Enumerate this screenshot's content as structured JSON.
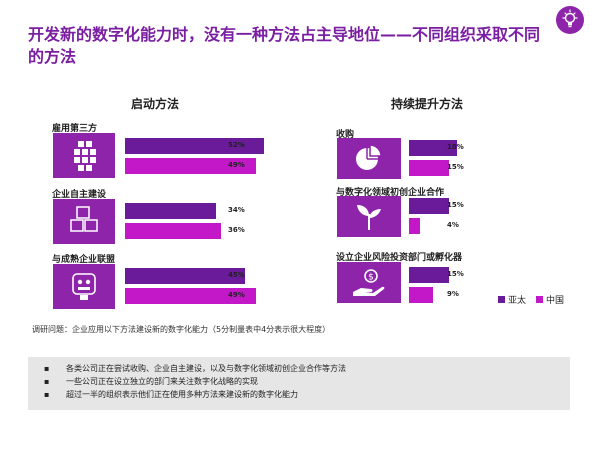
{
  "page": {
    "title": "开发新的数字化能力时，没有一种方法占主导地位——不同组织采取不同的方法",
    "icon": "lightbulb-icon"
  },
  "colors": {
    "asia_pacific": "#6a1b9a",
    "china": "#c218c8",
    "icon_bg": "#8e24aa",
    "title": "#7b1fa2",
    "summary_bg": "#e6e6e6"
  },
  "chart_data": [
    {
      "type": "bar",
      "title": "启动方法",
      "categories": [
        "雇用第三方",
        "企业自主建设",
        "与成熟企业联盟"
      ],
      "icons": [
        "grid-blocks-icon",
        "cubes-icon",
        "robot-icon"
      ],
      "series": [
        {
          "name": "亚太",
          "values": [
            52,
            34,
            45
          ]
        },
        {
          "name": "中国",
          "values": [
            49,
            36,
            49
          ]
        }
      ],
      "value_labels": [
        [
          "52%",
          "49%"
        ],
        [
          "34%",
          "36%"
        ],
        [
          "45%",
          "49%"
        ]
      ],
      "xlim": [
        0,
        60
      ],
      "orientation": "horizontal",
      "grid": false
    },
    {
      "type": "bar",
      "title": "持续提升方法",
      "categories": [
        "收购",
        "与数字化领域初创企业合作",
        "设立企业风险投资部门或孵化器"
      ],
      "icons": [
        "pie-chart-icon",
        "sprout-icon",
        "hand-money-icon"
      ],
      "series": [
        {
          "name": "亚太",
          "values": [
            18,
            15,
            15
          ]
        },
        {
          "name": "中国",
          "values": [
            15,
            4,
            9
          ]
        }
      ],
      "value_labels": [
        [
          "18%",
          "15%"
        ],
        [
          "15%",
          "4%"
        ],
        [
          "15%",
          "9%"
        ]
      ],
      "xlim": [
        0,
        60
      ],
      "orientation": "horizontal",
      "grid": false
    }
  ],
  "legend": {
    "placement": "bottom-right",
    "items": [
      {
        "label": "亚太"
      },
      {
        "label": "中国"
      }
    ]
  },
  "survey_note": "调研问题：企业应用以下方法建设新的数字化能力（5分制量表中4分表示很大程度）",
  "summary": {
    "bullets": [
      "各类公司正在尝试收购、企业自主建设，以及与数字化领域初创企业合作等方法",
      "一些公司正在设立独立的部门来关注数字化战略的实现",
      "超过一半的组织表示他们正在使用多种方法来建设新的数字化能力"
    ]
  }
}
